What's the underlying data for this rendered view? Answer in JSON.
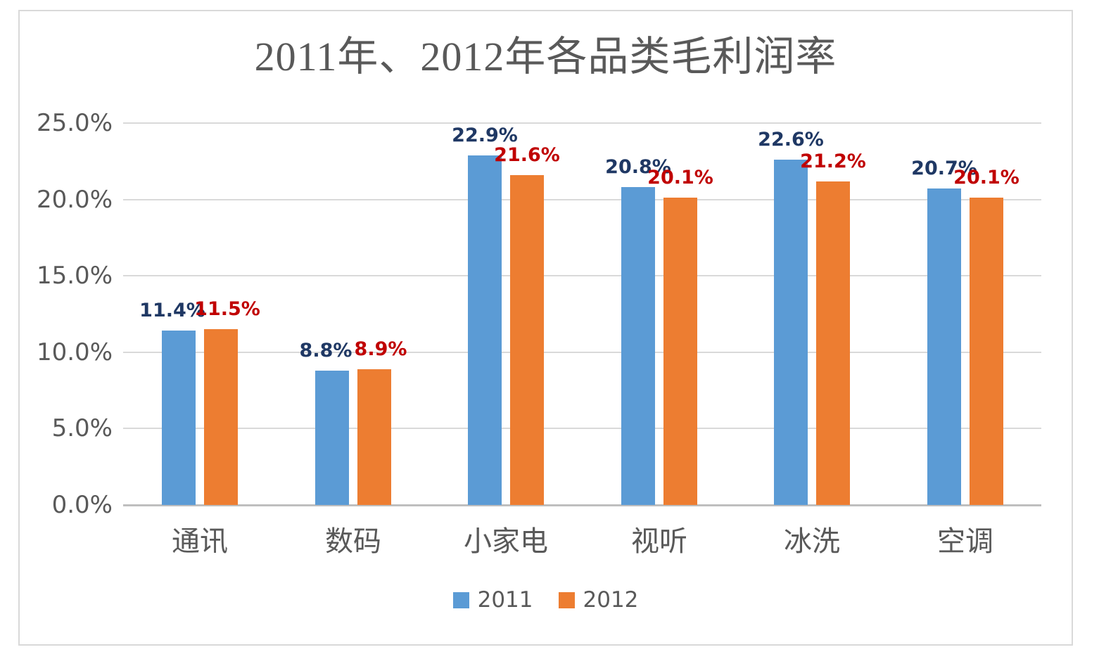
{
  "chart_data": {
    "type": "bar",
    "title": "2011年、2012年各品类毛利润率",
    "categories": [
      "通讯",
      "数码",
      "小家电",
      "视听",
      "冰洗",
      "空调"
    ],
    "series": [
      {
        "name": "2011",
        "color": "#5B9BD5",
        "label_color": "#1F3864",
        "values": [
          11.4,
          8.8,
          22.9,
          20.8,
          22.6,
          20.7
        ]
      },
      {
        "name": "2012",
        "color": "#ED7D31",
        "label_color": "#C00000",
        "values": [
          11.5,
          8.9,
          21.6,
          20.1,
          21.2,
          20.1
        ]
      }
    ],
    "data_labels": {
      "series_2011": [
        "11.4%",
        "8.8%",
        "22.9%",
        "20.8%",
        "22.6%",
        "20.7%"
      ],
      "series_2012": [
        "11.5%",
        "8.9%",
        "21.6%",
        "20.1%",
        "21.2%",
        "20.1%"
      ]
    },
    "y_axis": {
      "tick_labels": [
        "25.0%",
        "20.0%",
        "15.0%",
        "10.0%",
        "5.0%",
        "0.0%"
      ],
      "tick_values": [
        25,
        20,
        15,
        10,
        5,
        0
      ],
      "min": 0,
      "max": 25
    },
    "grid": true,
    "legend_position": "bottom",
    "colors": {
      "gridline": "#D9D9D9",
      "axis_baseline": "#BFBFBF",
      "axis_text": "#595959",
      "title_text": "#595959",
      "frame_border": "#D9D9D9"
    }
  }
}
